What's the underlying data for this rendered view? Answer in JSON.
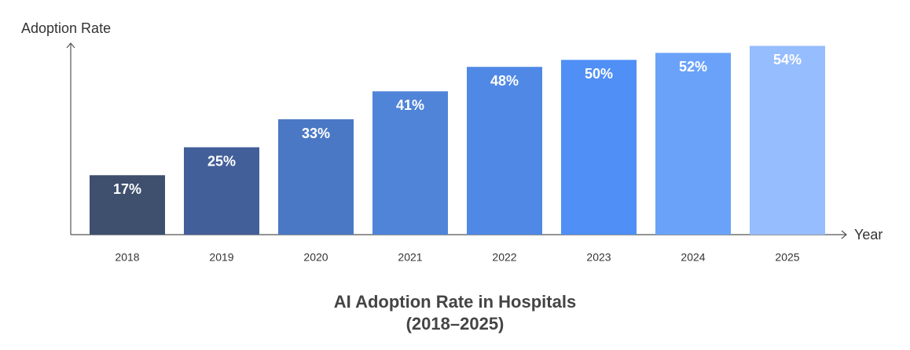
{
  "chart_data": {
    "type": "bar",
    "title": [
      "AI Adoption Rate in Hospitals",
      "(2018–2025)"
    ],
    "y_label": "Adoption Rate",
    "x_label": "Year",
    "categories": [
      "2018",
      "2019",
      "2020",
      "2021",
      "2022",
      "2023",
      "2024",
      "2025"
    ],
    "values": [
      17,
      25,
      33,
      41,
      48,
      50,
      52,
      54
    ],
    "value_labels": [
      "17%",
      "25%",
      "33%",
      "41%",
      "48%",
      "50%",
      "52%",
      "54%"
    ],
    "colors": [
      "#3f4f6e",
      "#435f99",
      "#4a78c4",
      "#4f84d9",
      "#5088e6",
      "#508ff5",
      "#6aa2fa",
      "#96bdfd"
    ],
    "ylim": [
      0,
      55
    ],
    "grid": false
  }
}
